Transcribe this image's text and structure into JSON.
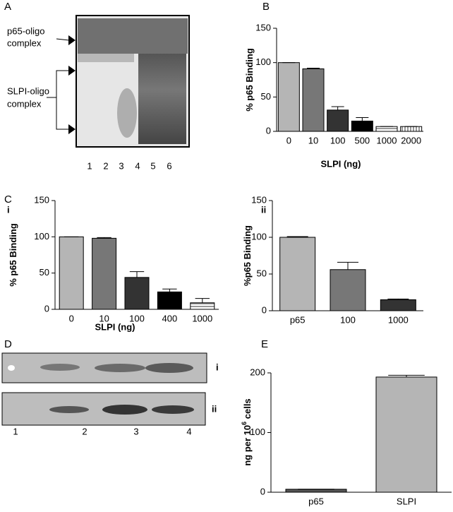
{
  "gel_a": {
    "panel": "A",
    "upper_label": [
      "p65-oligo",
      "complex"
    ],
    "lower_label": [
      "SLPI-oligo",
      "complex"
    ],
    "lanes": [
      "1",
      "2",
      "3",
      "4",
      "5",
      "6"
    ]
  },
  "gel_d": {
    "panel": "D",
    "rows": [
      "i",
      "ii"
    ],
    "lanes": [
      "1",
      "2",
      "3",
      "4"
    ]
  },
  "panel_c": "C",
  "chart_data": [
    {
      "type": "bar",
      "panel": "B",
      "ylabel": "% p65 Binding",
      "xlabel": "SLPI (ng)",
      "categories": [
        "0",
        "10",
        "100",
        "500",
        "1000",
        "2000"
      ],
      "values": [
        100,
        91,
        31,
        15,
        7,
        7
      ],
      "errors": [
        0,
        1,
        5,
        5,
        0,
        0
      ],
      "colors": [
        "#b5b5b5",
        "#777777",
        "#333333",
        "#000000",
        "#ffffff",
        "#ffffff"
      ],
      "patterns": [
        "none",
        "none",
        "none",
        "none",
        "horizontal",
        "vertical"
      ],
      "ylim": [
        0,
        150
      ],
      "yticks": [
        0,
        50,
        100,
        150
      ]
    },
    {
      "type": "bar",
      "panel": "i",
      "ylabel": "% p65 Binding",
      "xlabel": "SLPI (ng)",
      "categories": [
        "0",
        "10",
        "100",
        "400",
        "1000"
      ],
      "values": [
        100,
        98,
        44,
        24,
        9
      ],
      "errors": [
        0,
        1,
        8,
        4,
        6
      ],
      "colors": [
        "#b5b5b5",
        "#777777",
        "#333333",
        "#000000",
        "#ffffff"
      ],
      "patterns": [
        "none",
        "none",
        "none",
        "none",
        "horizontal"
      ],
      "ylim": [
        0,
        150
      ],
      "yticks": [
        0,
        50,
        100,
        150
      ]
    },
    {
      "type": "bar",
      "panel": "ii",
      "ylabel": "%p65 Binding",
      "categories": [
        "p65",
        "100",
        "1000"
      ],
      "values": [
        100,
        56,
        15
      ],
      "errors": [
        1,
        10,
        1
      ],
      "colors": [
        "#b5b5b5",
        "#777777",
        "#333333"
      ],
      "patterns": [
        "none",
        "none",
        "none"
      ],
      "ylim": [
        0,
        150
      ],
      "yticks": [
        0,
        50,
        100,
        150
      ]
    },
    {
      "type": "bar",
      "panel": "E",
      "ylabel": "ng per 10",
      "ylabel_sup": "6",
      "ylabel_tail": " cells",
      "categories": [
        "p65",
        "SLPI"
      ],
      "values": [
        5,
        193
      ],
      "errors": [
        0,
        3
      ],
      "colors": [
        "#555555",
        "#b5b5b5"
      ],
      "patterns": [
        "none",
        "none"
      ],
      "ylim": [
        0,
        200
      ],
      "yticks": [
        0,
        100,
        200
      ]
    }
  ]
}
